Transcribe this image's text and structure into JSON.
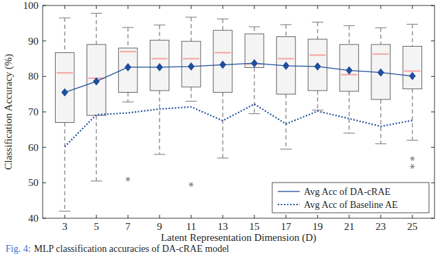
{
  "chart_data": {
    "type": "box",
    "x_label": "Latent Representation Dimension (D)",
    "y_label": "Classification Accuracy (%)",
    "caption": {
      "label": "Fig. 4:",
      "text": "MLP classification accuracies of DA-cRAE model"
    },
    "categories": [
      3,
      5,
      7,
      9,
      11,
      13,
      15,
      17,
      19,
      21,
      23,
      25
    ],
    "boxes": [
      {
        "low": 42,
        "q1": 67,
        "median": 81,
        "q3": 86.7,
        "high": 96.5,
        "outliers": []
      },
      {
        "low": 50.5,
        "q1": 69,
        "median": 79.5,
        "q3": 89,
        "high": 97.8,
        "outliers": []
      },
      {
        "low": 72.8,
        "q1": 75.5,
        "median": 87,
        "q3": 88,
        "high": 93.8,
        "outliers": [
          51
        ]
      },
      {
        "low": 58,
        "q1": 76,
        "median": 85,
        "q3": 90.2,
        "high": 94.5,
        "outliers": []
      },
      {
        "low": 73,
        "q1": 77,
        "median": 85,
        "q3": 89.9,
        "high": 96.7,
        "outliers": [
          49.5
        ]
      },
      {
        "low": 57,
        "q1": 75.5,
        "median": 86.7,
        "q3": 93,
        "high": 96.2,
        "outliers": []
      },
      {
        "low": 69.5,
        "q1": 82.5,
        "median": 83.5,
        "q3": 92,
        "high": 94,
        "outliers": []
      },
      {
        "low": 59.5,
        "q1": 75,
        "median": 85,
        "q3": 91.2,
        "high": 94.6,
        "outliers": []
      },
      {
        "low": 70.5,
        "q1": 76,
        "median": 86,
        "q3": 90.5,
        "high": 95.3,
        "outliers": []
      },
      {
        "low": 64,
        "q1": 75.8,
        "median": 80.5,
        "q3": 89,
        "high": 94.3,
        "outliers": []
      },
      {
        "low": 61,
        "q1": 73.5,
        "median": 86.3,
        "q3": 89,
        "high": 93.7,
        "outliers": []
      },
      {
        "low": 62,
        "q1": 76.5,
        "median": 81.5,
        "q3": 88.5,
        "high": 94.7,
        "outliers": [
          56.8,
          54.6
        ]
      }
    ],
    "color": "#f4a3a3",
    "series": [
      {
        "name": "Avg Acc of DA-cRAE",
        "type": "line",
        "color": "#1f4e9a",
        "marker": "diamond",
        "line_style": "solid",
        "values": [
          75.5,
          78.6,
          82.6,
          82.6,
          82.8,
          83.3,
          83.7,
          83,
          82.8,
          81.7,
          81.1,
          80.1
        ]
      },
      {
        "name": "Avg Acc of Baseline AE",
        "type": "line",
        "color": "#1f4e9a",
        "marker": "none",
        "line_style": "dotted",
        "values": [
          60.2,
          69.2,
          69.7,
          70.8,
          71.4,
          67.5,
          72.2,
          66.6,
          70.2,
          68.1,
          65.9,
          67.6
        ]
      }
    ],
    "ylim": [
      40,
      100
    ],
    "yticks": [
      40,
      50,
      60,
      70,
      80,
      90,
      100
    ],
    "grid": false,
    "legend": "lower right"
  }
}
